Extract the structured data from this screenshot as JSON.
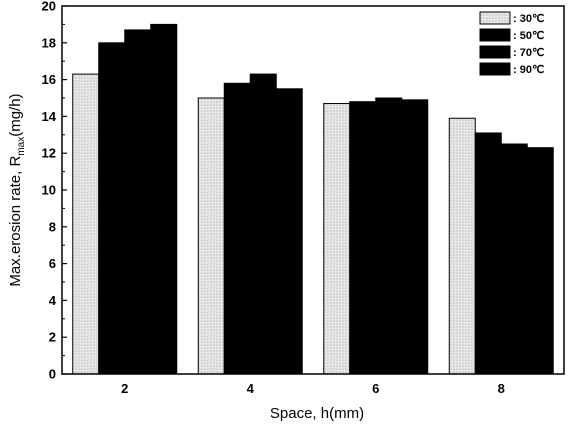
{
  "chart_data": {
    "type": "bar",
    "title": "",
    "xlabel": "Space, h(mm)",
    "ylabel": {
      "prefix": "Max.erosion rate, R",
      "subscript": "max",
      "suffix": "(mg/h)"
    },
    "categories": [
      "2",
      "4",
      "6",
      "8"
    ],
    "ylim": [
      0,
      20
    ],
    "yticks": [
      "0",
      "2",
      "4",
      "6",
      "8",
      "10",
      "12",
      "14",
      "16",
      "18",
      "20"
    ],
    "grid": false,
    "legend_position": "top-right",
    "series": [
      {
        "name": ": 30℃",
        "values": [
          16.3,
          15.0,
          14.7,
          13.9
        ],
        "color": "#e6e6e6"
      },
      {
        "name": ": 50℃",
        "values": [
          18.0,
          15.8,
          14.8,
          13.1
        ],
        "color": "#000000"
      },
      {
        "name": ": 70℃",
        "values": [
          18.7,
          16.3,
          15.0,
          12.5
        ],
        "color": "#000000"
      },
      {
        "name": ": 90℃",
        "values": [
          19.0,
          15.5,
          14.9,
          12.3
        ],
        "color": "#000000"
      }
    ]
  }
}
